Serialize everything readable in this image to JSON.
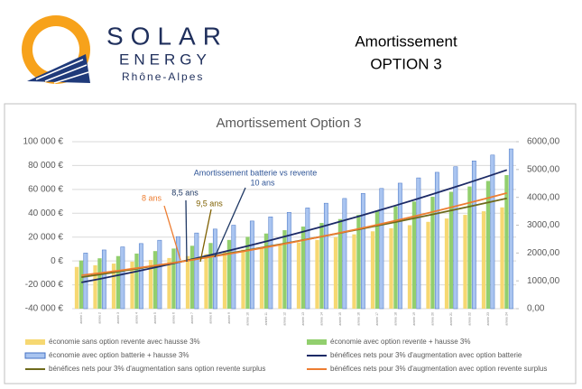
{
  "header": {
    "brand": "SOLAR",
    "brand_sub": "ENERGY",
    "region": "Rhône-Alpes",
    "title": "Amortissement",
    "subtitle": "OPTION 3"
  },
  "chart_data": {
    "type": "bar_line",
    "title": "Amortissement Option 3",
    "categories": [
      "année 1",
      "année 2",
      "année 3",
      "année 4",
      "année 5",
      "année 6",
      "année 7",
      "année 8",
      "année 9",
      "année 10",
      "année 11",
      "année 12",
      "année 13",
      "année 14",
      "année 15",
      "année 16",
      "année 17",
      "année 18",
      "année 19",
      "année 20",
      "année 21",
      "année 22",
      "année 23",
      "année 24"
    ],
    "series": [
      {
        "name": "économie sans option revente avec hausse 3%",
        "kind": "bar",
        "axis": "y2",
        "color": "#f6d872",
        "values": [
          1500,
          1560,
          1620,
          1690,
          1750,
          1820,
          1890,
          1960,
          2040,
          2120,
          2200,
          2290,
          2380,
          2470,
          2570,
          2670,
          2780,
          2890,
          3000,
          3120,
          3240,
          3370,
          3500,
          3640
        ]
      },
      {
        "name": "économie avec option revente + hausse 3%",
        "kind": "bar",
        "axis": "y2",
        "color": "#92cf6e",
        "values": [
          1730,
          1810,
          1890,
          1980,
          2070,
          2160,
          2260,
          2360,
          2470,
          2580,
          2700,
          2820,
          2950,
          3080,
          3220,
          3370,
          3520,
          3680,
          3850,
          4020,
          4200,
          4390,
          4590,
          4800
        ]
      },
      {
        "name": "économie avec option batterie + hausse 3%",
        "kind": "bar",
        "axis": "y2",
        "color": "#a9c4f0",
        "values": [
          2000,
          2110,
          2220,
          2340,
          2460,
          2590,
          2720,
          2860,
          3000,
          3150,
          3300,
          3460,
          3620,
          3790,
          3960,
          4140,
          4320,
          4510,
          4700,
          4900,
          5100,
          5310,
          5520,
          5740
        ]
      },
      {
        "name": "bénéfices nets pour 3% d'augmentation avec option batterie",
        "kind": "line",
        "color": "#1c2a66",
        "values": [
          -18000,
          -15000,
          -11900,
          -8700,
          -5400,
          -2000,
          1500,
          5100,
          8800,
          12600,
          16500,
          20500,
          24600,
          28800,
          33100,
          37500,
          42000,
          46600,
          51300,
          56100,
          61000,
          66000,
          71100,
          76300
        ]
      },
      {
        "name": "bénéfices nets pour 3% d'augmentation sans option revente surplus",
        "kind": "line",
        "color": "#6e6a1c",
        "values": [
          -13600,
          -11300,
          -8900,
          -6500,
          -4000,
          -1500,
          1100,
          3700,
          6400,
          9100,
          11900,
          14700,
          17600,
          20500,
          23500,
          26500,
          29600,
          32700,
          35900,
          39100,
          42400,
          45700,
          49100,
          52500
        ]
      },
      {
        "name": "bénéfices nets pour 3% d'augmentation avec option revente surplus",
        "kind": "line",
        "color": "#ed7d31",
        "values": [
          -12000,
          -10100,
          -8100,
          -6000,
          -3800,
          -1500,
          900,
          3400,
          6000,
          8700,
          11500,
          14400,
          17400,
          20500,
          23700,
          27000,
          30400,
          33900,
          37500,
          41200,
          45000,
          48900,
          52900,
          57000
        ]
      }
    ],
    "ylim": [
      -40000,
      100000
    ],
    "yticks": [
      {
        "value": -40000,
        "label": "-40 000 €"
      },
      {
        "value": -20000,
        "label": "-20 000 €"
      },
      {
        "value": 0,
        "label": "0 €"
      },
      {
        "value": 20000,
        "label": "20 000 €"
      },
      {
        "value": 40000,
        "label": "40 000 €"
      },
      {
        "value": 60000,
        "label": "60 000 €"
      },
      {
        "value": 80000,
        "label": "80 000 €"
      },
      {
        "value": 100000,
        "label": "100 000 €"
      }
    ],
    "y2lim": [
      0,
      6000
    ],
    "y2ticks": [
      {
        "value": 0,
        "label": "0,00"
      },
      {
        "value": 1000,
        "label": "1000,00"
      },
      {
        "value": 2000,
        "label": "2000,00"
      },
      {
        "value": 3000,
        "label": "3000,00"
      },
      {
        "value": 4000,
        "label": "4000,00"
      },
      {
        "value": 5000,
        "label": "5000,00"
      },
      {
        "value": 6000,
        "label": "6000,00"
      }
    ],
    "grid": true,
    "annotations": [
      {
        "text": "Amortissement batterie vs revente",
        "color": "#2f5597"
      },
      {
        "text": "10 ans",
        "color": "#2f5597"
      },
      {
        "text": "8 ans",
        "color": "#ed7d31"
      },
      {
        "text": "8,5 ans",
        "color": "#1f3864"
      },
      {
        "text": "9,5 ans",
        "color": "#7f6000"
      }
    ]
  }
}
